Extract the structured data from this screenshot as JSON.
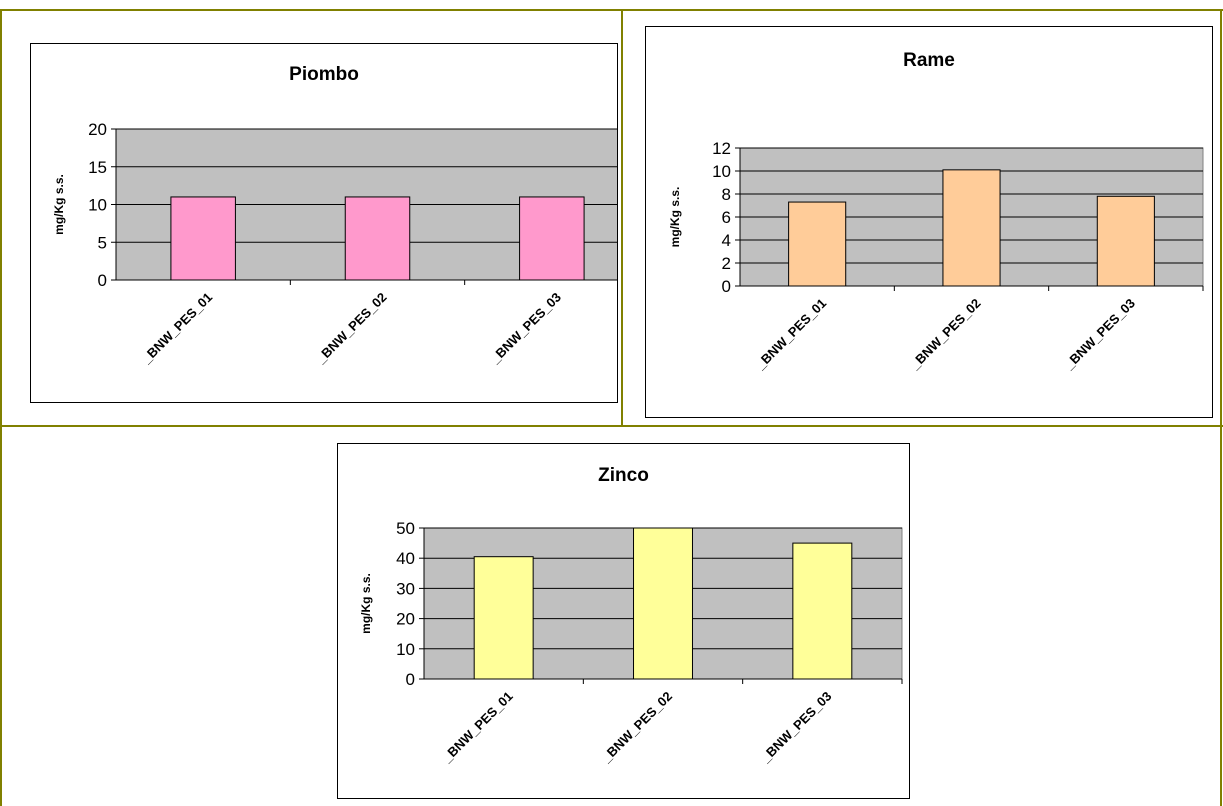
{
  "colors": {
    "frame": "#808000",
    "plot_bg": "#c0c0c0",
    "piombo_bar": "#ff99cc",
    "rame_bar": "#ffcc99",
    "zinco_bar": "#ffff99"
  },
  "chart_data": [
    {
      "type": "bar",
      "title": "Piombo",
      "ylabel": "mg/Kg s.s.",
      "xlabel": "",
      "categories": [
        "_BNW_PES_01",
        "_BNW_PES_02",
        "_BNW_PES_03"
      ],
      "values": [
        11,
        11,
        11
      ],
      "ylim": [
        0,
        20
      ],
      "yticks": [
        0,
        5,
        10,
        15,
        20
      ],
      "grid": true,
      "color": "#ff99cc"
    },
    {
      "type": "bar",
      "title": "Rame",
      "ylabel": "mg/Kg s.s.",
      "xlabel": "",
      "categories": [
        "_BNW_PES_01",
        "_BNW_PES_02",
        "_BNW_PES_03"
      ],
      "values": [
        7.3,
        10.1,
        7.8
      ],
      "ylim": [
        0,
        12
      ],
      "yticks": [
        0,
        2,
        4,
        6,
        8,
        10,
        12
      ],
      "grid": true,
      "color": "#ffcc99"
    },
    {
      "type": "bar",
      "title": "Zinco",
      "ylabel": "mg/Kg s.s.",
      "xlabel": "",
      "categories": [
        "_BNW_PES_01",
        "_BNW_PES_02",
        "_BNW_PES_03"
      ],
      "values": [
        40.5,
        50,
        45
      ],
      "ylim": [
        0,
        50
      ],
      "yticks": [
        0,
        10,
        20,
        30,
        40,
        50
      ],
      "grid": true,
      "color": "#ffff99"
    }
  ]
}
